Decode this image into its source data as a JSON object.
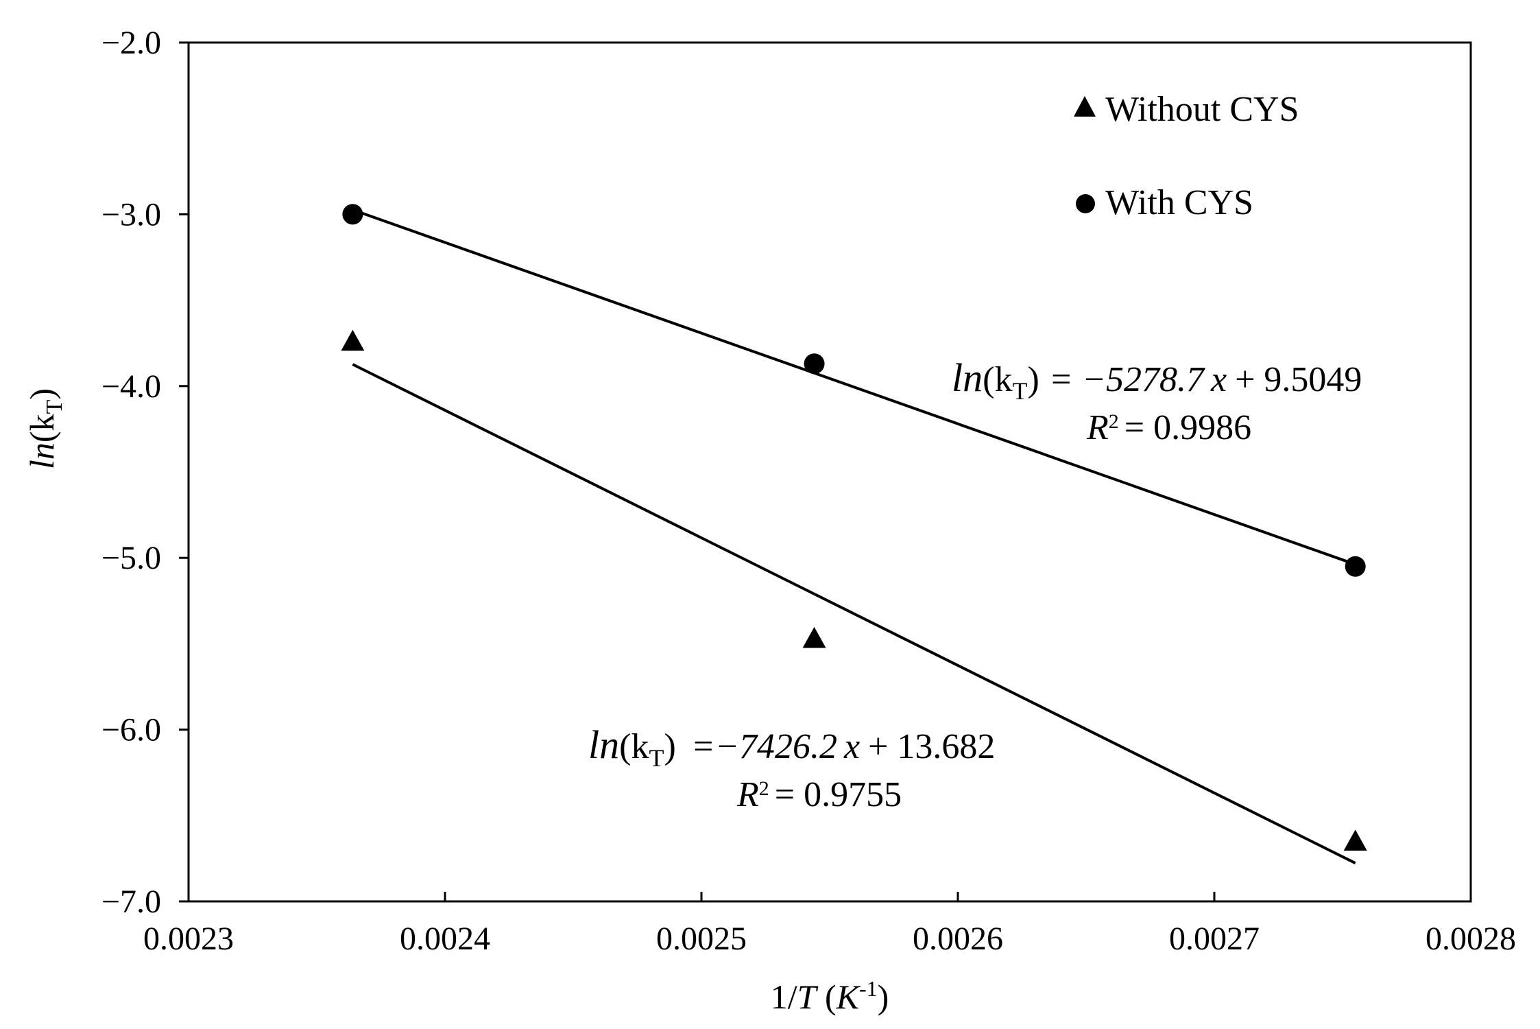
{
  "chart_data": {
    "type": "scatter",
    "xlabel": {
      "main": "1/T (K",
      "sup": "-1",
      "tail": ")",
      "var": "T",
      "prefix": "1/",
      "unit_open": " (",
      "unit": "K",
      "unit_close": ")"
    },
    "ylabel": {
      "prefix": "ln",
      "open": "(k",
      "sub": "T",
      "close": ")"
    },
    "xlim": [
      0.0023,
      0.0028
    ],
    "ylim": [
      -7.0,
      -2.0
    ],
    "x_ticks": [
      "0.0023",
      "0.0024",
      "0.0025",
      "0.0026",
      "0.0027",
      "0.0028"
    ],
    "x_tick_values": [
      0.0023,
      0.0024,
      0.0025,
      0.0026,
      0.0027,
      0.0028
    ],
    "y_ticks": [
      "−2.0",
      "−3.0",
      "−4.0",
      "−5.0",
      "−6.0",
      "−7.0"
    ],
    "y_tick_values": [
      -2.0,
      -3.0,
      -4.0,
      -5.0,
      -6.0,
      -7.0
    ],
    "grid": false,
    "legend_position": "top-right",
    "series": [
      {
        "name": "Without CYS",
        "marker": "triangle",
        "x": [
          0.002364,
          0.002544,
          0.002755
        ],
        "y": [
          -3.74,
          -5.47,
          -6.65
        ],
        "fit": {
          "slope": -7426.2,
          "intercept": 13.682
        },
        "equation": {
          "lhs": "ln",
          "open": "(k",
          "sub": "T",
          "close": ")",
          "rhs": "=−7426.2",
          "var": "x",
          "rest": "+ 13.682"
        },
        "r2": {
          "label": "R",
          "sup": "2",
          "value": "= 0.9755"
        }
      },
      {
        "name": "With CYS",
        "marker": "circle",
        "x": [
          0.002364,
          0.002544,
          0.002755
        ],
        "y": [
          -3.0,
          -3.87,
          -5.05
        ],
        "fit": {
          "slope": -5278.7,
          "intercept": 9.5049
        },
        "equation": {
          "lhs": "ln",
          "open": "(k",
          "sub": "T",
          "close": ")",
          "rhs": "= −5278.7",
          "var": "x",
          "rest": "+ 9.5049"
        },
        "r2": {
          "label": "R",
          "sup": "2",
          "value": "= 0.9986"
        }
      }
    ],
    "colors": {
      "ink": "#000000",
      "background": "#ffffff"
    }
  }
}
